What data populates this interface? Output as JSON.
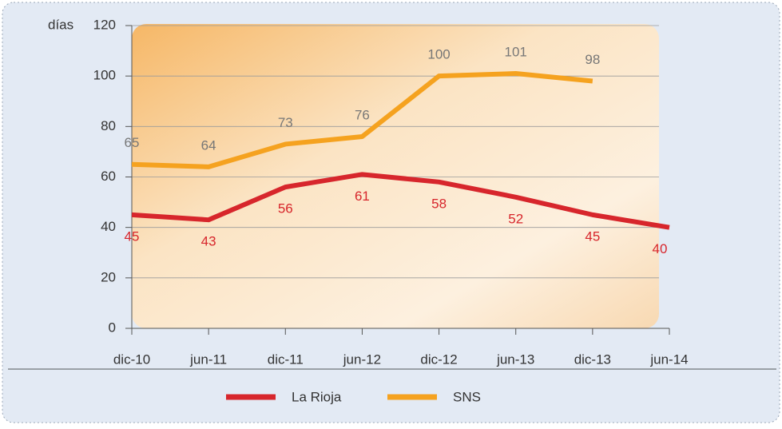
{
  "chart_data": {
    "type": "line",
    "y_label": "días",
    "categories": [
      "dic-10",
      "jun-11",
      "dic-11",
      "jun-12",
      "dic-12",
      "jun-13",
      "dic-13",
      "jun-14"
    ],
    "series": [
      {
        "name": "La Rioja",
        "color": "#d7262c",
        "values": [
          45,
          43,
          56,
          61,
          58,
          52,
          45,
          40
        ]
      },
      {
        "name": "SNS",
        "color": "#f5a21f",
        "values": [
          65,
          64,
          73,
          76,
          100,
          101,
          98,
          null
        ]
      }
    ],
    "ylim": [
      0,
      120
    ],
    "yticks": [
      0,
      20,
      40,
      60,
      80,
      100,
      120
    ],
    "grid": true,
    "legend": "bottom"
  }
}
